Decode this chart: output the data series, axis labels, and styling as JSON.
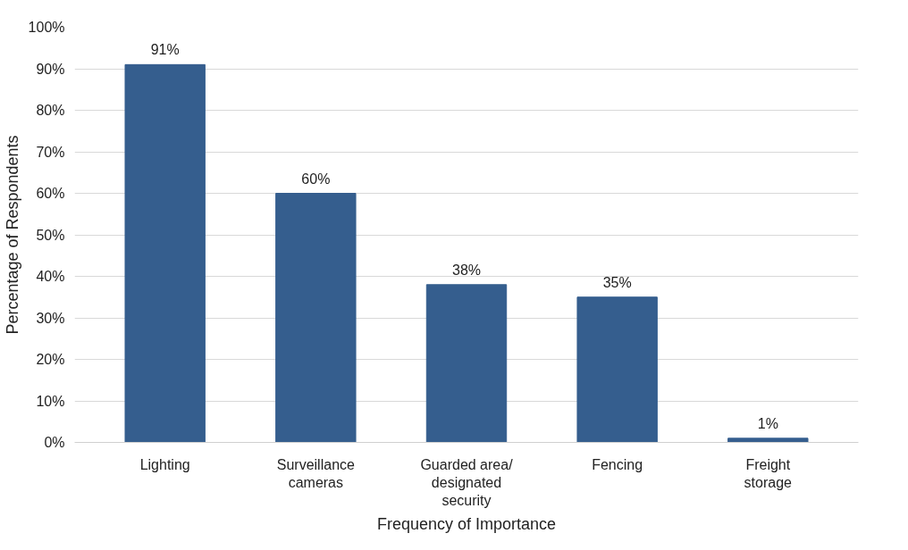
{
  "chart_data": {
    "type": "bar",
    "xlabel": "Frequency of Importance",
    "ylabel": "Percentage of Respondents",
    "categories": [
      "Lighting",
      "Surveillance cameras",
      "Guarded area/ designated security",
      "Fencing",
      "Freight storage"
    ],
    "values": [
      91,
      60,
      38,
      35,
      1
    ],
    "value_labels": [
      "91%",
      "60%",
      "38%",
      "35%",
      "1%"
    ],
    "color": "#355e8e",
    "ylim": [
      0,
      100
    ],
    "yticks": [
      {
        "value": 0,
        "label": "0%"
      },
      {
        "value": 10,
        "label": "10%"
      },
      {
        "value": 20,
        "label": "20%"
      },
      {
        "value": 30,
        "label": "30%"
      },
      {
        "value": 40,
        "label": "40%"
      },
      {
        "value": 50,
        "label": "50%"
      },
      {
        "value": 60,
        "label": "60%"
      },
      {
        "value": 70,
        "label": "70%"
      },
      {
        "value": 80,
        "label": "80%"
      },
      {
        "value": 90,
        "label": "90%"
      },
      {
        "value": 100,
        "label": "100%"
      }
    ],
    "grid": "y"
  }
}
